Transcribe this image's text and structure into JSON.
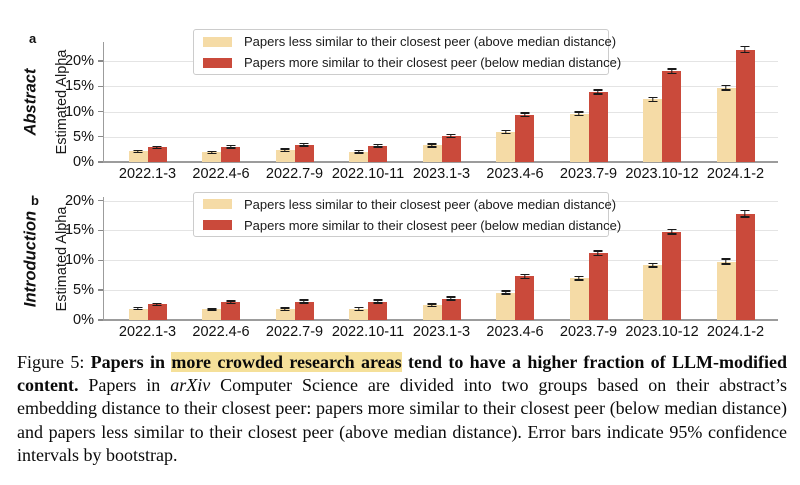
{
  "figure": {
    "caption": {
      "runs": [
        {
          "text": "Figure 5: ",
          "b": false,
          "i": false,
          "hl": false
        },
        {
          "text": "Papers in ",
          "b": true,
          "i": false,
          "hl": false
        },
        {
          "text": "more crowded research areas",
          "b": true,
          "i": false,
          "hl": true
        },
        {
          "text": " tend to have a higher fraction of LLM-modified content.",
          "b": true,
          "i": false,
          "hl": false
        },
        {
          "text": " Papers in ",
          "b": false,
          "i": false,
          "hl": false
        },
        {
          "text": "arXiv",
          "b": false,
          "i": true,
          "hl": false
        },
        {
          "text": " Computer Science are divided into two groups based on their abstract’s embedding distance to their closest peer: papers more similar to their closest peer (below median distance) and papers less similar to their closest peer (above median distance). Error bars indicate 95% confidence intervals by bootstrap.",
          "b": false,
          "i": false,
          "hl": false
        }
      ]
    }
  },
  "colors": {
    "less_similar": "#f5dba6",
    "more_similar": "#ca4a3b",
    "grid": "#e4e4e4",
    "spine": "#9c9c9c",
    "error_bar": "#1a1a1a",
    "highlight": "#f5e099"
  },
  "chart_data": [
    {
      "type": "bar",
      "panel": "a",
      "title": "Abstract",
      "ylabel": "Estimated Alpha",
      "categories": [
        "2022.1-3",
        "2022.4-6",
        "2022.7-9",
        "2022.10-11",
        "2023.1-3",
        "2023.4-6",
        "2023.7-9",
        "2023.10-12",
        "2024.1-2"
      ],
      "ylim": [
        0,
        23.8
      ],
      "yticks": [
        0,
        5,
        10,
        15,
        20
      ],
      "ytick_labels": [
        "0%",
        "5%",
        "10%",
        "15%",
        "20%"
      ],
      "grid": true,
      "legend_position": "upper left",
      "series": [
        {
          "name": "Papers less similar to their closest peer (above median distance)",
          "color": "#f5dba6",
          "values": [
            2.1,
            1.9,
            2.3,
            2.0,
            3.3,
            5.9,
            9.6,
            12.4,
            14.7
          ],
          "errors": [
            0.2,
            0.2,
            0.25,
            0.25,
            0.3,
            0.3,
            0.35,
            0.4,
            0.45
          ]
        },
        {
          "name": "Papers more similar to their closest peer (below median distance)",
          "color": "#ca4a3b",
          "values": [
            2.9,
            3.0,
            3.4,
            3.2,
            5.2,
            9.4,
            13.9,
            18.0,
            22.3
          ],
          "errors": [
            0.2,
            0.25,
            0.25,
            0.25,
            0.3,
            0.35,
            0.4,
            0.45,
            0.55
          ]
        }
      ]
    },
    {
      "type": "bar",
      "panel": "b",
      "title": "Introduction",
      "ylabel": "Estimated Alpha",
      "categories": [
        "2022.1-3",
        "2022.4-6",
        "2022.7-9",
        "2022.10-11",
        "2023.1-3",
        "2023.4-6",
        "2023.7-9",
        "2023.10-12",
        "2024.1-2"
      ],
      "ylim": [
        0,
        20.6
      ],
      "yticks": [
        0,
        5,
        10,
        15,
        20
      ],
      "ytick_labels": [
        "0%",
        "5%",
        "10%",
        "15%",
        "20%"
      ],
      "grid": true,
      "legend_position": "upper left",
      "series": [
        {
          "name": "Papers less similar to their closest peer (above median distance)",
          "color": "#f5dba6",
          "values": [
            1.9,
            1.8,
            1.8,
            1.8,
            2.5,
            4.6,
            7.0,
            9.2,
            9.8
          ],
          "errors": [
            0.15,
            0.15,
            0.2,
            0.25,
            0.2,
            0.25,
            0.3,
            0.3,
            0.4
          ]
        },
        {
          "name": "Papers more similar to their closest peer (below median distance)",
          "color": "#ca4a3b",
          "values": [
            2.6,
            3.0,
            3.1,
            3.1,
            3.6,
            7.3,
            11.2,
            14.8,
            17.8
          ],
          "errors": [
            0.2,
            0.2,
            0.25,
            0.25,
            0.25,
            0.3,
            0.35,
            0.4,
            0.55
          ]
        }
      ]
    }
  ]
}
